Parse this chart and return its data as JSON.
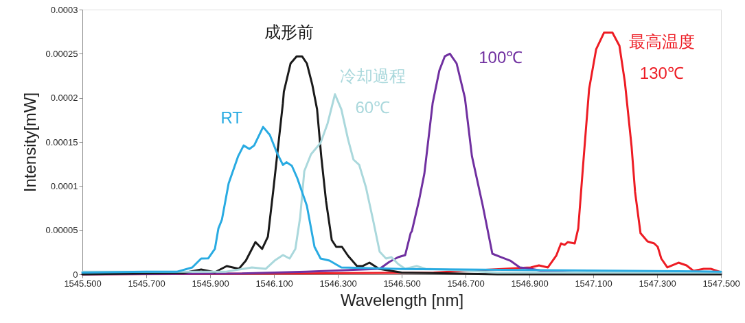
{
  "chart_data": {
    "type": "line",
    "xlabel": "Wavelength [nm]",
    "ylabel": "Intensity[mW]",
    "xlim": [
      1545.5,
      1547.5
    ],
    "xticks": [
      {
        "value": 1545.5,
        "label": "1545.500"
      },
      {
        "value": 1545.7,
        "label": "1545.700"
      },
      {
        "value": 1545.9,
        "label": "1545.900"
      },
      {
        "value": 1546.1,
        "label": "1546.100"
      },
      {
        "value": 1546.3,
        "label": "1546.300"
      },
      {
        "value": 1546.5,
        "label": "1546.500"
      },
      {
        "value": 1546.7,
        "label": "1546.700"
      },
      {
        "value": 1546.9,
        "label": "1546.900"
      },
      {
        "value": 1547.1,
        "label": "1547.100"
      },
      {
        "value": 1547.3,
        "label": "1547.300"
      },
      {
        "value": 1547.5,
        "label": "1547.500"
      }
    ],
    "ylim": [
      0,
      0.0003
    ],
    "yticks": [
      0,
      {
        "value": 5e-05,
        "label": "0.00005"
      },
      0.0001,
      0.00015,
      0.0002,
      0.00025,
      0.0003
    ],
    "marker": "none",
    "line_style": "solid",
    "series": [
      {
        "name": "最高温度 130℃",
        "color": "#ed1c24",
        "x": [
          1545.5,
          1546.2,
          1546.6,
          1546.904,
          1546.93,
          1546.958,
          1546.984,
          1546.999,
          1547.01,
          1547.02,
          1547.042,
          1547.053,
          1547.07,
          1547.087,
          1547.109,
          1547.134,
          1547.16,
          1547.182,
          1547.199,
          1547.22,
          1547.231,
          1547.248,
          1547.27,
          1547.291,
          1547.302,
          1547.313,
          1547.332,
          1547.367,
          1547.392,
          1547.414,
          1547.446,
          1547.468,
          1547.5
        ],
        "values": [
          0,
          1e-06,
          2e-06,
          7.8e-06,
          1.01e-05,
          7.8e-06,
          2.1e-05,
          3.5e-05,
          3.34e-05,
          3.65e-05,
          3.5e-05,
          5.2e-05,
          0.000132,
          0.00021,
          0.000255,
          0.000274,
          0.000274,
          0.000259,
          0.000218,
          0.000145,
          9.33e-05,
          4.66e-05,
          3.73e-05,
          3.5e-05,
          3.11e-05,
          1.79e-05,
          7.8e-06,
          1.32e-05,
          1.01e-05,
          3.9e-06,
          6.2e-06,
          6.2e-06,
          2.3e-06
        ]
      },
      {
        "name": "100℃",
        "color": "#7030a0",
        "x": [
          1545.5,
          1546.0,
          1546.2,
          1546.431,
          1546.461,
          1546.489,
          1546.511,
          1546.528,
          1546.532,
          1546.554,
          1546.571,
          1546.597,
          1546.618,
          1546.635,
          1546.651,
          1546.672,
          1546.698,
          1546.72,
          1546.754,
          1546.784,
          1546.812,
          1546.84,
          1546.87,
          1546.904,
          1546.941,
          1547.1,
          1547.5
        ],
        "values": [
          0,
          1e-06,
          3e-06,
          6.2e-06,
          1.4e-05,
          1.94e-05,
          2.18e-05,
          4.66e-05,
          4.9e-05,
          8.32e-05,
          0.000114,
          0.000194,
          0.000231,
          0.000247,
          0.00025,
          0.000239,
          0.0002,
          0.000134,
          7.77e-05,
          2.33e-05,
          1.94e-05,
          1.55e-05,
          7.8e-06,
          6.2e-06,
          3.9e-06,
          1e-06,
          1e-06
        ]
      },
      {
        "name": "成形前",
        "color": "#1a1a1a",
        "x": [
          1545.5,
          1545.816,
          1545.872,
          1545.915,
          1545.952,
          1545.99,
          1546.012,
          1546.042,
          1546.063,
          1546.081,
          1546.098,
          1546.128,
          1546.131,
          1546.152,
          1546.171,
          1546.188,
          1546.203,
          1546.22,
          1546.235,
          1546.248,
          1546.263,
          1546.281,
          1546.295,
          1546.313,
          1546.332,
          1546.36,
          1546.377,
          1546.399,
          1546.429,
          1546.5,
          1546.8,
          1547.5
        ],
        "values": [
          0,
          1.6e-06,
          5.4e-06,
          2.3e-06,
          9.3e-06,
          6.2e-06,
          1.55e-05,
          3.65e-05,
          2.88e-05,
          4.27e-05,
          9.56e-05,
          0.000194,
          0.000207,
          0.000239,
          0.000247,
          0.000247,
          0.000239,
          0.000215,
          0.000187,
          0.000134,
          8.32e-05,
          3.89e-05,
          3.11e-05,
          3.11e-05,
          2.1e-05,
          9.3e-06,
          9.3e-06,
          1.32e-05,
          6.2e-06,
          2e-06,
          0,
          0
        ]
      },
      {
        "name": "冷却過程 60℃",
        "color": "#aad8dc",
        "x": [
          1545.5,
          1545.95,
          1546.031,
          1546.074,
          1546.102,
          1546.128,
          1546.149,
          1546.167,
          1546.182,
          1546.195,
          1546.216,
          1546.246,
          1546.268,
          1546.291,
          1546.311,
          1546.332,
          1546.349,
          1546.367,
          1546.388,
          1546.41,
          1546.431,
          1546.451,
          1546.468,
          1546.489,
          1546.511,
          1546.547,
          1546.575,
          1546.633,
          1546.8,
          1547.5
        ],
        "values": [
          3e-06,
          3e-06,
          7.8e-06,
          6.2e-06,
          1.55e-05,
          2.18e-05,
          1.79e-05,
          2.88e-05,
          6.45e-05,
          0.000117,
          0.000136,
          0.000149,
          0.000171,
          0.000204,
          0.000187,
          0.000153,
          0.00013,
          0.000124,
          9.87e-05,
          6.22e-05,
          2.56e-05,
          1.79e-05,
          1.94e-05,
          1.17e-05,
          6.2e-06,
          9.3e-06,
          6.2e-06,
          5.4e-06,
          2e-06,
          2e-06
        ]
      },
      {
        "name": "RT",
        "color": "#29abe2",
        "x": [
          1545.5,
          1545.7,
          1545.797,
          1545.844,
          1545.872,
          1545.894,
          1545.915,
          1545.926,
          1545.937,
          1545.958,
          1545.988,
          1546.005,
          1546.023,
          1546.038,
          1546.066,
          1546.087,
          1546.109,
          1546.128,
          1546.139,
          1546.156,
          1546.173,
          1546.203,
          1546.227,
          1546.246,
          1546.274,
          1546.311,
          1546.5,
          1547.5
        ],
        "values": [
          2e-06,
          3e-06,
          3e-06,
          7.8e-06,
          1.79e-05,
          1.8e-05,
          2.88e-05,
          5.2e-05,
          6.2e-05,
          0.000103,
          0.000134,
          0.000146,
          0.000142,
          0.000146,
          0.000167,
          0.000158,
          0.000138,
          0.000124,
          0.000127,
          0.000123,
          0.000109,
          7.77e-05,
          3.11e-05,
          1.79e-05,
          1.55e-05,
          7.8e-06,
          6e-06,
          3e-06
        ]
      }
    ],
    "legend": false
  }
}
